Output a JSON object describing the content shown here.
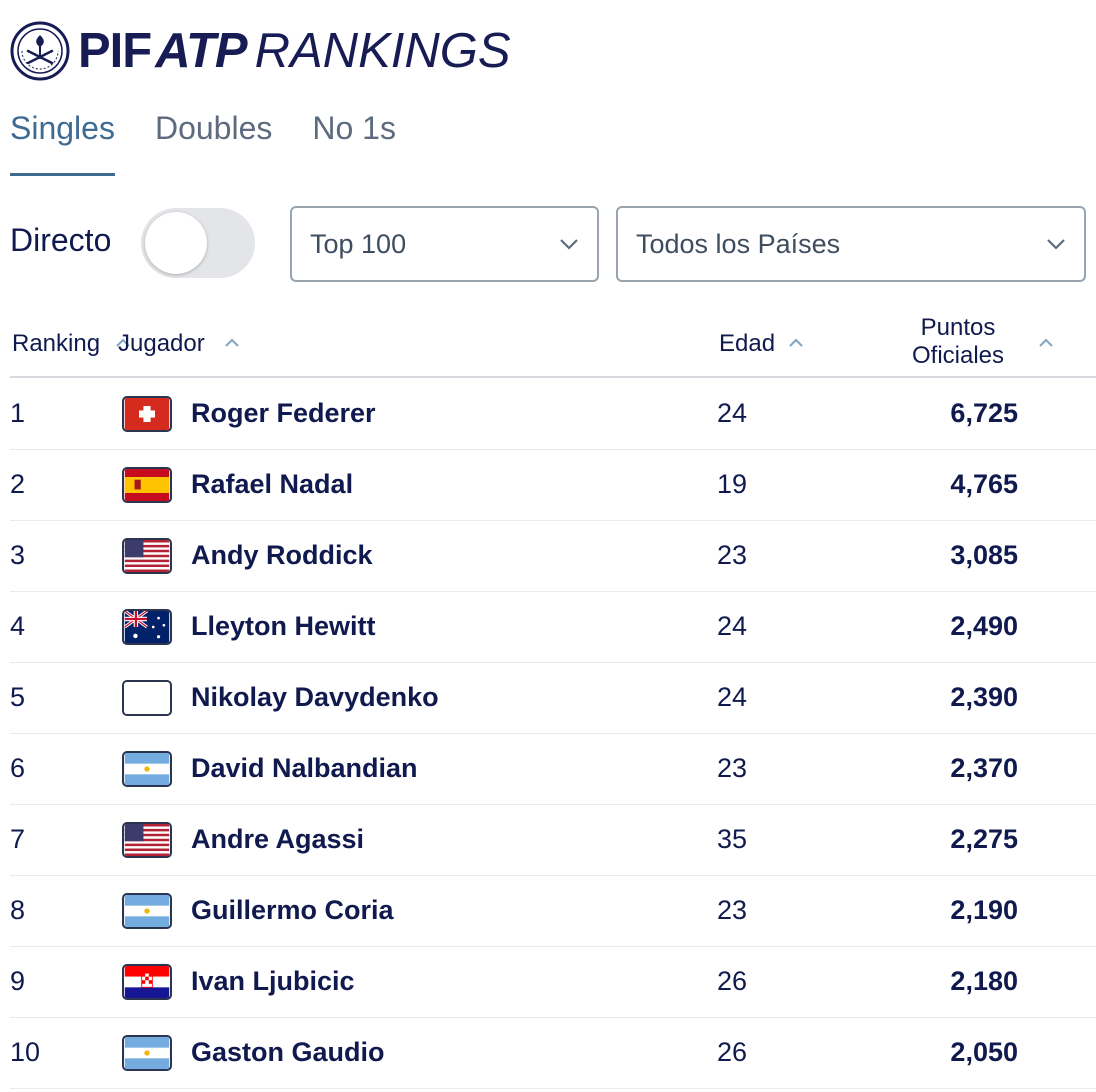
{
  "brand": {
    "seal_icon": "pif-seal-icon",
    "pif": "PIF",
    "atp": "ATP",
    "rankings": "RANKINGS",
    "color": "#181c55"
  },
  "tabs": [
    {
      "label": "Singles",
      "active": true
    },
    {
      "label": "Doubles",
      "active": false
    },
    {
      "label": "No 1s",
      "active": false
    }
  ],
  "filters": {
    "live_label": "Directo",
    "live_on": false,
    "range_value": "Top 100",
    "country_value": "Todos los Países"
  },
  "table": {
    "headers": {
      "ranking": "Ranking",
      "player": "Jugador",
      "age": "Edad",
      "points_line1": "Puntos",
      "points_line2": "Oficiales"
    },
    "rows": [
      {
        "rank": "1",
        "flag": "switzerland-flag-icon",
        "name": "Roger Federer",
        "age": "24",
        "points": "6,725"
      },
      {
        "rank": "2",
        "flag": "spain-flag-icon",
        "name": "Rafael Nadal",
        "age": "19",
        "points": "4,765"
      },
      {
        "rank": "3",
        "flag": "usa-flag-icon",
        "name": "Andy Roddick",
        "age": "23",
        "points": "3,085"
      },
      {
        "rank": "4",
        "flag": "australia-flag-icon",
        "name": "Lleyton Hewitt",
        "age": "24",
        "points": "2,490"
      },
      {
        "rank": "5",
        "flag": "blank-flag-icon",
        "name": "Nikolay Davydenko",
        "age": "24",
        "points": "2,390"
      },
      {
        "rank": "6",
        "flag": "argentina-flag-icon",
        "name": "David Nalbandian",
        "age": "23",
        "points": "2,370"
      },
      {
        "rank": "7",
        "flag": "usa-flag-icon",
        "name": "Andre Agassi",
        "age": "35",
        "points": "2,275"
      },
      {
        "rank": "8",
        "flag": "argentina-flag-icon",
        "name": "Guillermo Coria",
        "age": "23",
        "points": "2,190"
      },
      {
        "rank": "9",
        "flag": "croatia-flag-icon",
        "name": "Ivan Ljubicic",
        "age": "26",
        "points": "2,180"
      },
      {
        "rank": "10",
        "flag": "argentina-flag-icon",
        "name": "Gaston Gaudio",
        "age": "26",
        "points": "2,050"
      }
    ]
  },
  "colors": {
    "navy": "#101a4e",
    "tab_active": "#3f6b93",
    "tab_inactive": "#5e6b7f",
    "toggle_track": "#e3e5e8"
  }
}
